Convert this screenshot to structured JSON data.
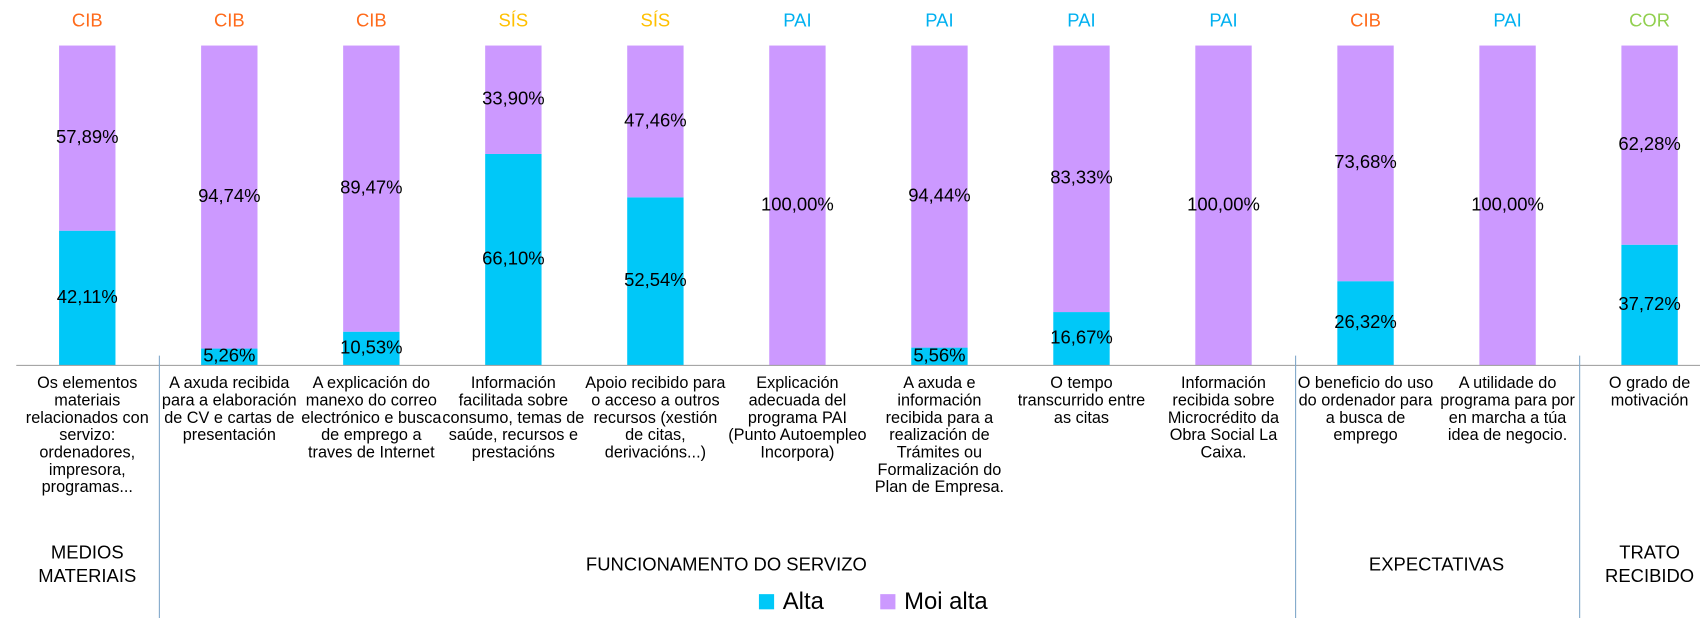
{
  "chart_data": {
    "type": "bar",
    "stacked": true,
    "categories": [
      "Os elementos materiais relacionados con servizo: ordenadores, impresora, programas...",
      "A axuda recibida para a elaboración de CV e cartas de presentación",
      "A explicación do manexo do correo electrónico e busca de emprego a traves de Internet",
      "Información facilitada sobre consumo, temas de saúde, recursos e prestacións",
      "Apoio recibido para o acceso a outros recursos (xestión de citas, derivacións...)",
      "Explicación adecuada del programa PAI (Punto Autoempleo Incorpora)",
      "A axuda e información recibida para a realización de Trámites ou Formalización do Plan de Empresa.",
      "O tempo transcurrido entre as citas",
      "Información recibida sobre Microcrédito da Obra Social La Caixa.",
      "O beneficio do uso do ordenador para a busca de emprego",
      "A utilidade do programa para por en marcha a túa idea de negocio.",
      "O grado de motivación"
    ],
    "top_labels": [
      "CIB",
      "CIB",
      "CIB",
      "SÍS",
      "SÍS",
      "PAI",
      "PAI",
      "PAI",
      "PAI",
      "CIB",
      "PAI",
      "COR"
    ],
    "top_label_colors": {
      "CIB": "#ff6a1a",
      "SÍS": "#ffc000",
      "PAI": "#00b0f0",
      "COR": "#92d050"
    },
    "groups": [
      {
        "label": "MEDIOS MATERIAIS",
        "span": 1
      },
      {
        "label": "FUNCIONAMENTO DO SERVIZO",
        "span": 8
      },
      {
        "label": "EXPECTATIVAS",
        "span": 2
      },
      {
        "label": "TRATO RECIBIDO",
        "span": 1
      }
    ],
    "series": [
      {
        "name": "Alta",
        "color": "#00c8f8",
        "values": [
          42.11,
          5.26,
          10.53,
          66.1,
          52.54,
          0,
          5.56,
          16.67,
          0,
          26.32,
          0,
          37.72
        ],
        "value_labels": [
          "42,11%",
          "5,26%",
          "10,53%",
          "66,10%",
          "52,54%",
          null,
          "5,56%",
          "16,67%",
          null,
          "26,32%",
          null,
          "37,72%"
        ]
      },
      {
        "name": "Moi alta",
        "color": "#cc99ff",
        "values": [
          57.89,
          94.74,
          89.47,
          33.9,
          47.46,
          100,
          94.44,
          83.33,
          100,
          73.68,
          100,
          62.28
        ],
        "value_labels": [
          "57,89%",
          "94,74%",
          "89,47%",
          "33,90%",
          "47,46%",
          "100,00%",
          "94,44%",
          "83,33%",
          "100,00%",
          "73,68%",
          "100,00%",
          "62,28%"
        ]
      }
    ],
    "ylim": [
      0,
      100
    ]
  }
}
